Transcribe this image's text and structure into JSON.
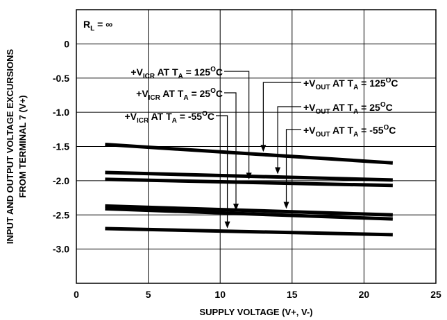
{
  "chart_data": {
    "type": "line",
    "title": "",
    "xlabel": "SUPPLY VOLTAGE (V+, V-)",
    "ylabel_lines": [
      "INPUT AND OUTPUT VOLTAGE EXCURSIONS",
      "FROM TERMINAL 7 (V+)"
    ],
    "xlim": [
      0,
      25
    ],
    "ylim": [
      -3.5,
      0.5
    ],
    "x_ticks": [
      0,
      5,
      10,
      15,
      20,
      25
    ],
    "x_tick_labels": [
      "0",
      "5",
      "10",
      "15",
      "20",
      "25"
    ],
    "y_ticks": [
      0,
      -0.5,
      -1.0,
      -1.5,
      -2.0,
      -2.5,
      -3.0
    ],
    "y_tick_labels": [
      "0",
      "-0.5",
      "-1.0",
      "-1.5",
      "-2.0",
      "-2.5",
      "-3.0"
    ],
    "grid": true,
    "condition": {
      "main": "R",
      "sub": "L",
      "rest": " = ∞"
    },
    "series": [
      {
        "id": "vout_125",
        "x": [
          2,
          22
        ],
        "y": [
          -1.47,
          -1.74
        ]
      },
      {
        "id": "vout_25",
        "x": [
          2,
          22
        ],
        "y": [
          -1.88,
          -1.99
        ]
      },
      {
        "id": "vicr_125",
        "x": [
          2,
          22
        ],
        "y": [
          -1.98,
          -2.07
        ]
      },
      {
        "id": "vout_m55",
        "x": [
          2,
          22
        ],
        "y": [
          -2.37,
          -2.5
        ]
      },
      {
        "id": "vicr_25",
        "x": [
          2,
          22
        ],
        "y": [
          -2.41,
          -2.56
        ]
      },
      {
        "id": "vicr_m55",
        "x": [
          2,
          22
        ],
        "y": [
          -2.7,
          -2.79
        ]
      }
    ],
    "annotations": [
      {
        "pre": "+V",
        "sub": "ICR",
        "mid": " AT T",
        "sub2": "A",
        "temp": " = 125",
        "sup": "O",
        "post": "C"
      },
      {
        "pre": "+V",
        "sub": "ICR",
        "mid": " AT T",
        "sub2": "A",
        "temp": " = 25",
        "sup": "O",
        "post": "C"
      },
      {
        "pre": "+V",
        "sub": "ICR",
        "mid": " AT T",
        "sub2": "A",
        "temp": " = -55",
        "sup": "O",
        "post": "C"
      },
      {
        "pre": "+V",
        "sub": "OUT",
        "mid": " AT T",
        "sub2": "A",
        "temp": " = 125",
        "sup": "O",
        "post": "C"
      },
      {
        "pre": "+V",
        "sub": "OUT",
        "mid": " AT T",
        "sub2": "A",
        "temp": " = 25",
        "sup": "O",
        "post": "C"
      },
      {
        "pre": "+V",
        "sub": "OUT",
        "mid": " AT T",
        "sub2": "A",
        "temp": " = -55",
        "sup": "O",
        "post": "C"
      }
    ],
    "colors": {
      "line": "#000000",
      "grid": "#000000"
    }
  }
}
